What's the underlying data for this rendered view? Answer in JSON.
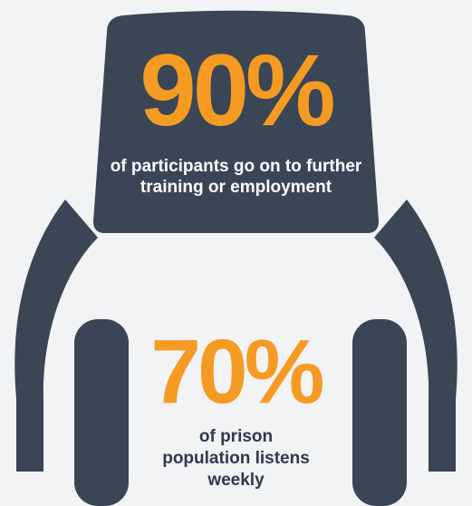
{
  "stats": {
    "participants": {
      "value": "90%",
      "caption": "of participants go on to further training or employment"
    },
    "prison": {
      "value": "70%",
      "caption": "of prison population listens weekly"
    }
  },
  "colors": {
    "background": "#f2f3f5",
    "dark": "#3a4556",
    "accent": "#f59a23",
    "text_light": "#ffffff"
  },
  "icons": {
    "headphones": "headphones-icon",
    "speech_bubble": "speech-bubble-icon"
  }
}
